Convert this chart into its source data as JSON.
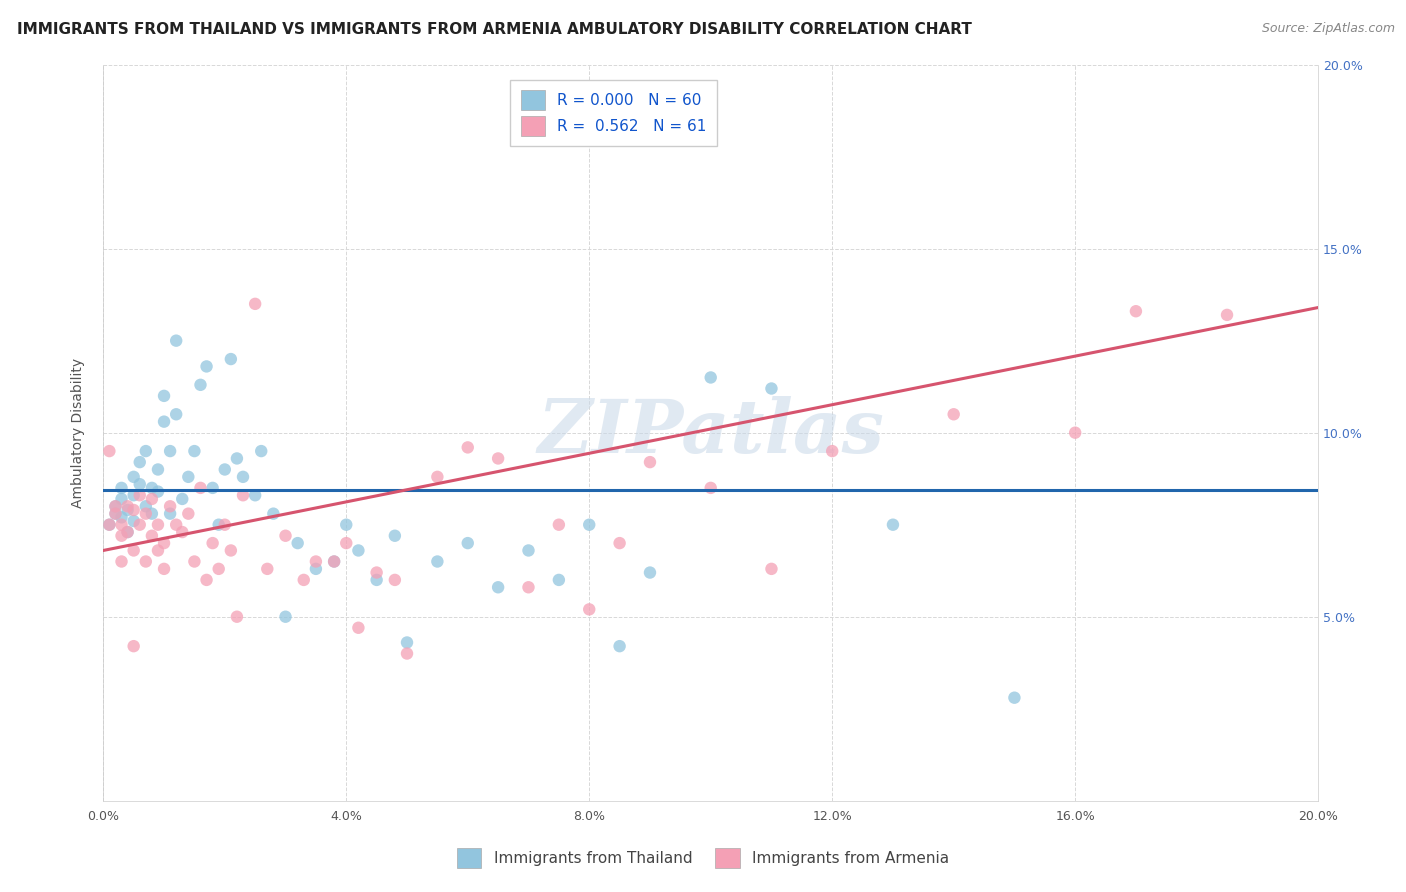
{
  "title": "IMMIGRANTS FROM THAILAND VS IMMIGRANTS FROM ARMENIA AMBULATORY DISABILITY CORRELATION CHART",
  "source": "Source: ZipAtlas.com",
  "ylabel": "Ambulatory Disability",
  "watermark": "ZIPatlas",
  "legend_entries": [
    {
      "label": "Immigrants from Thailand",
      "color": "#92c5de",
      "R": "0.000",
      "N": "60"
    },
    {
      "label": "Immigrants from Armenia",
      "color": "#f4a0b5",
      "R": "0.562",
      "N": "61"
    }
  ],
  "xlim": [
    0.0,
    0.2
  ],
  "ylim": [
    0.0,
    0.2
  ],
  "xticks": [
    0.0,
    0.04,
    0.08,
    0.12,
    0.16,
    0.2
  ],
  "yticks": [
    0.0,
    0.05,
    0.1,
    0.15,
    0.2
  ],
  "thailand_x": [
    0.001,
    0.002,
    0.002,
    0.003,
    0.003,
    0.003,
    0.004,
    0.004,
    0.005,
    0.005,
    0.005,
    0.006,
    0.006,
    0.007,
    0.007,
    0.008,
    0.008,
    0.009,
    0.009,
    0.01,
    0.01,
    0.011,
    0.011,
    0.012,
    0.012,
    0.013,
    0.014,
    0.015,
    0.016,
    0.017,
    0.018,
    0.019,
    0.02,
    0.021,
    0.022,
    0.023,
    0.025,
    0.026,
    0.028,
    0.03,
    0.032,
    0.035,
    0.038,
    0.04,
    0.042,
    0.045,
    0.048,
    0.05,
    0.055,
    0.06,
    0.065,
    0.07,
    0.075,
    0.08,
    0.085,
    0.09,
    0.1,
    0.11,
    0.13,
    0.15
  ],
  "thailand_y": [
    0.075,
    0.08,
    0.078,
    0.082,
    0.077,
    0.085,
    0.073,
    0.079,
    0.088,
    0.083,
    0.076,
    0.092,
    0.086,
    0.08,
    0.095,
    0.085,
    0.078,
    0.09,
    0.084,
    0.103,
    0.11,
    0.095,
    0.078,
    0.125,
    0.105,
    0.082,
    0.088,
    0.095,
    0.113,
    0.118,
    0.085,
    0.075,
    0.09,
    0.12,
    0.093,
    0.088,
    0.083,
    0.095,
    0.078,
    0.05,
    0.07,
    0.063,
    0.065,
    0.075,
    0.068,
    0.06,
    0.072,
    0.043,
    0.065,
    0.07,
    0.058,
    0.068,
    0.06,
    0.075,
    0.042,
    0.062,
    0.115,
    0.112,
    0.075,
    0.028
  ],
  "armenia_x": [
    0.001,
    0.001,
    0.002,
    0.002,
    0.003,
    0.003,
    0.003,
    0.004,
    0.004,
    0.005,
    0.005,
    0.005,
    0.006,
    0.006,
    0.007,
    0.007,
    0.008,
    0.008,
    0.009,
    0.009,
    0.01,
    0.01,
    0.011,
    0.012,
    0.013,
    0.014,
    0.015,
    0.016,
    0.017,
    0.018,
    0.019,
    0.02,
    0.021,
    0.022,
    0.023,
    0.025,
    0.027,
    0.03,
    0.033,
    0.035,
    0.038,
    0.04,
    0.042,
    0.045,
    0.048,
    0.05,
    0.055,
    0.06,
    0.065,
    0.07,
    0.075,
    0.08,
    0.085,
    0.09,
    0.1,
    0.11,
    0.12,
    0.14,
    0.16,
    0.17,
    0.185
  ],
  "armenia_y": [
    0.075,
    0.095,
    0.078,
    0.08,
    0.072,
    0.075,
    0.065,
    0.08,
    0.073,
    0.079,
    0.068,
    0.042,
    0.075,
    0.083,
    0.078,
    0.065,
    0.072,
    0.082,
    0.075,
    0.068,
    0.07,
    0.063,
    0.08,
    0.075,
    0.073,
    0.078,
    0.065,
    0.085,
    0.06,
    0.07,
    0.063,
    0.075,
    0.068,
    0.05,
    0.083,
    0.135,
    0.063,
    0.072,
    0.06,
    0.065,
    0.065,
    0.07,
    0.047,
    0.062,
    0.06,
    0.04,
    0.088,
    0.096,
    0.093,
    0.058,
    0.075,
    0.052,
    0.07,
    0.092,
    0.085,
    0.063,
    0.095,
    0.105,
    0.1,
    0.133,
    0.132
  ],
  "thailand_line_y_intercept": 0.0845,
  "thailand_line_slope": 0.0,
  "armenia_line_y_intercept": 0.068,
  "armenia_line_slope": 0.33,
  "title_fontsize": 11,
  "source_fontsize": 9,
  "axis_label_fontsize": 10,
  "tick_fontsize": 9,
  "legend_fontsize": 11,
  "scatter_size": 80,
  "thailand_color": "#92c5de",
  "armenia_color": "#f4a0b5",
  "thailand_line_color": "#2166ac",
  "armenia_line_color": "#d6546e",
  "grid_color": "#d8d8d8",
  "watermark_color": "#c8d8e8",
  "right_axis_color": "#4472c4"
}
